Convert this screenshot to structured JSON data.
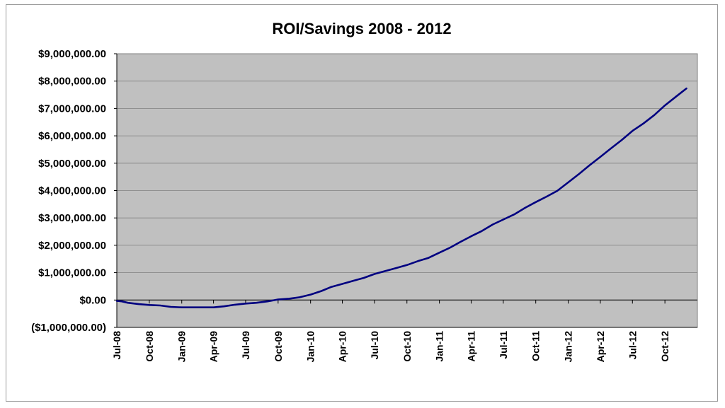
{
  "chart_data": {
    "type": "line",
    "title": "ROI/Savings 2008 - 2012",
    "xlabel": "",
    "ylabel": "",
    "ylim": [
      -1000000,
      9000000
    ],
    "y_ticks": [
      {
        "value": 9000000,
        "label": "$9,000,000.00"
      },
      {
        "value": 8000000,
        "label": "$8,000,000.00"
      },
      {
        "value": 7000000,
        "label": "$7,000,000.00"
      },
      {
        "value": 6000000,
        "label": "$6,000,000.00"
      },
      {
        "value": 5000000,
        "label": "$5,000,000.00"
      },
      {
        "value": 4000000,
        "label": "$4,000,000.00"
      },
      {
        "value": 3000000,
        "label": "$3,000,000.00"
      },
      {
        "value": 2000000,
        "label": "$2,000,000.00"
      },
      {
        "value": 1000000,
        "label": "$1,000,000.00"
      },
      {
        "value": 0,
        "label": "$0.00"
      },
      {
        "value": -1000000,
        "label": "($1,000,000.00)"
      }
    ],
    "x_tick_labels": [
      "Jul-08",
      "Oct-08",
      "Jan-09",
      "Apr-09",
      "Jul-09",
      "Oct-09",
      "Jan-10",
      "Apr-10",
      "Jul-10",
      "Oct-10",
      "Jan-11",
      "Apr-11",
      "Jul-11",
      "Oct-11",
      "Jan-12",
      "Apr-12",
      "Jul-12",
      "Oct-12"
    ],
    "grid": true,
    "legend": "none",
    "series": [
      {
        "color": "#000080",
        "x": [
          "2008-07-01",
          "2008-07-15",
          "2008-08-01",
          "2008-09-01",
          "2008-10-01",
          "2008-11-01",
          "2008-12-01",
          "2009-01-01",
          "2009-02-01",
          "2009-03-01",
          "2009-04-01",
          "2009-05-01",
          "2009-06-01",
          "2009-07-01",
          "2009-08-01",
          "2009-09-01",
          "2009-10-01",
          "2009-11-01",
          "2009-12-01",
          "2010-01-01",
          "2010-02-01",
          "2010-03-01",
          "2010-04-01",
          "2010-05-01",
          "2010-06-01",
          "2010-07-01",
          "2010-08-01",
          "2010-09-01",
          "2010-10-01",
          "2010-11-01",
          "2010-12-01",
          "2011-01-01",
          "2011-02-01",
          "2011-03-01",
          "2011-04-01",
          "2011-05-01",
          "2011-06-01",
          "2011-07-01",
          "2011-08-01",
          "2011-09-01",
          "2011-10-01",
          "2011-11-01",
          "2011-12-01",
          "2012-01-01",
          "2012-02-01",
          "2012-03-01",
          "2012-04-01",
          "2012-05-01",
          "2012-06-01",
          "2012-07-01",
          "2012-08-01",
          "2012-09-01",
          "2012-10-01",
          "2012-11-01",
          "2012-12-01"
        ],
        "values": [
          -30000,
          -50000,
          -100000,
          -150000,
          -180000,
          -200000,
          -250000,
          -270000,
          -270000,
          -270000,
          -270000,
          -230000,
          -170000,
          -130000,
          -100000,
          -50000,
          20000,
          50000,
          100000,
          200000,
          330000,
          480000,
          590000,
          700000,
          810000,
          950000,
          1060000,
          1170000,
          1280000,
          1420000,
          1540000,
          1730000,
          1920000,
          2120000,
          2330000,
          2520000,
          2760000,
          2940000,
          3130000,
          3370000,
          3580000,
          3780000,
          3990000,
          4300000,
          4610000,
          4920000,
          5230000,
          5540000,
          5850000,
          6180000,
          6450000,
          6760000,
          7110000,
          7430000,
          7730000
        ]
      }
    ]
  },
  "colors": {
    "plot_bg": "#c0c0c0",
    "line": "#000080",
    "negative_label": "#ff0000",
    "grid": "#808080"
  }
}
